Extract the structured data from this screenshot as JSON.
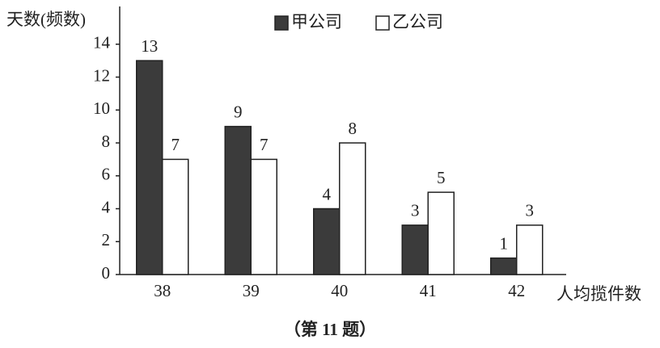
{
  "chart_data": {
    "type": "bar",
    "y_label": "天数(频数)",
    "x_label": "人均揽件数",
    "categories": [
      "38",
      "39",
      "40",
      "41",
      "42"
    ],
    "series": [
      {
        "name": "甲公司",
        "color": "#3b3b3b",
        "values": [
          13,
          9,
          4,
          3,
          1
        ]
      },
      {
        "name": "乙公司",
        "color": "#ffffff",
        "values": [
          7,
          7,
          8,
          5,
          3
        ]
      }
    ],
    "ylim": [
      0,
      16
    ],
    "yticks": [
      0,
      2,
      4,
      6,
      8,
      10,
      12,
      14
    ],
    "legend": "top"
  },
  "caption": "（第 11 题）"
}
